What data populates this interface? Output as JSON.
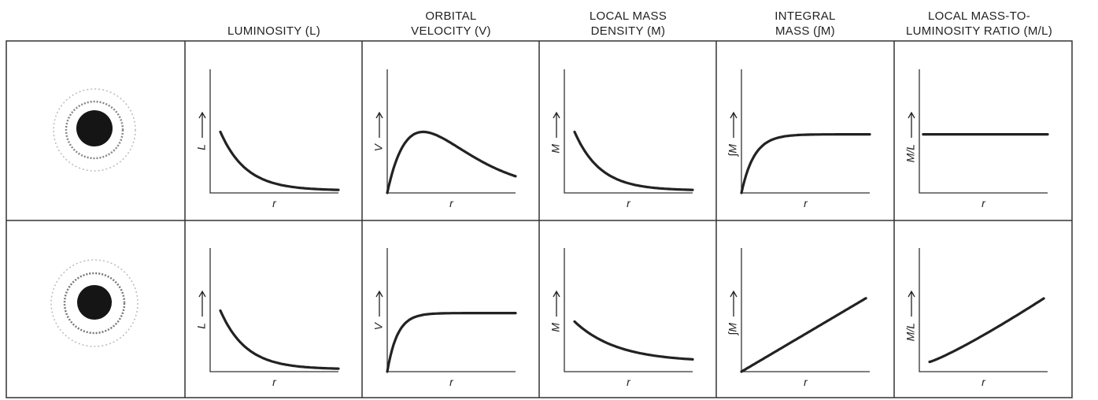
{
  "columns": [
    {
      "header": [
        "LUMINOSITY (L)"
      ],
      "y_label": "L",
      "x_label": "r"
    },
    {
      "header": [
        "ORBITAL",
        "VELOCITY (V)"
      ],
      "y_label": "V",
      "x_label": "r"
    },
    {
      "header": [
        "LOCAL MASS",
        "DENSITY (M)"
      ],
      "y_label": "M",
      "x_label": "r"
    },
    {
      "header": [
        "INTEGRAL",
        "MASS (∫M)"
      ],
      "y_label": "∫M",
      "x_label": "r"
    },
    {
      "header": [
        "LOCAL MASS-TO-",
        "LUMINOSITY RATIO (M/L)"
      ],
      "y_label": "M/L",
      "x_label": "r"
    }
  ]
}
